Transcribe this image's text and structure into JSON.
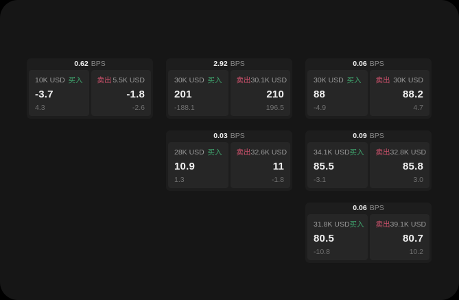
{
  "labels": {
    "bps_unit": "BPS",
    "buy": "买入",
    "sell": "卖出"
  },
  "colors": {
    "page_background": "#161616",
    "card_background": "#1d1d1d",
    "panel_background": "#262626",
    "buy_green": "#3fa56e",
    "sell_red": "#c9506a",
    "value_white": "#f0f0f0",
    "label_gray": "#9a9a9a",
    "sub_gray": "#717171"
  },
  "cards": [
    {
      "bps": "0.62",
      "buy": {
        "amount": "10K USD",
        "price": "-3.7",
        "change": "4.3"
      },
      "sell": {
        "amount": "5.5K USD",
        "price": "-1.8",
        "change": "-2.6"
      }
    },
    {
      "bps": "2.92",
      "buy": {
        "amount": "30K USD",
        "price": "201",
        "change": "-188.1"
      },
      "sell": {
        "amount": "30.1K USD",
        "price": "210",
        "change": "196.5"
      }
    },
    {
      "bps": "0.06",
      "buy": {
        "amount": "30K USD",
        "price": "88",
        "change": "-4.9"
      },
      "sell": {
        "amount": "30K USD",
        "price": "88.2",
        "change": "4.7"
      }
    },
    {
      "bps": "0.03",
      "buy": {
        "amount": "28K USD",
        "price": "10.9",
        "change": "1.3"
      },
      "sell": {
        "amount": "32.6K USD",
        "price": "11",
        "change": "-1.8"
      }
    },
    {
      "bps": "0.09",
      "buy": {
        "amount": "34.1K USD",
        "price": "85.5",
        "change": "-3.1"
      },
      "sell": {
        "amount": "32.8K USD",
        "price": "85.8",
        "change": "3.0"
      }
    },
    {
      "bps": "0.06",
      "buy": {
        "amount": "31.8K USD",
        "price": "80.5",
        "change": "-10.8"
      },
      "sell": {
        "amount": "39.1K USD",
        "price": "80.7",
        "change": "10.2"
      }
    }
  ]
}
